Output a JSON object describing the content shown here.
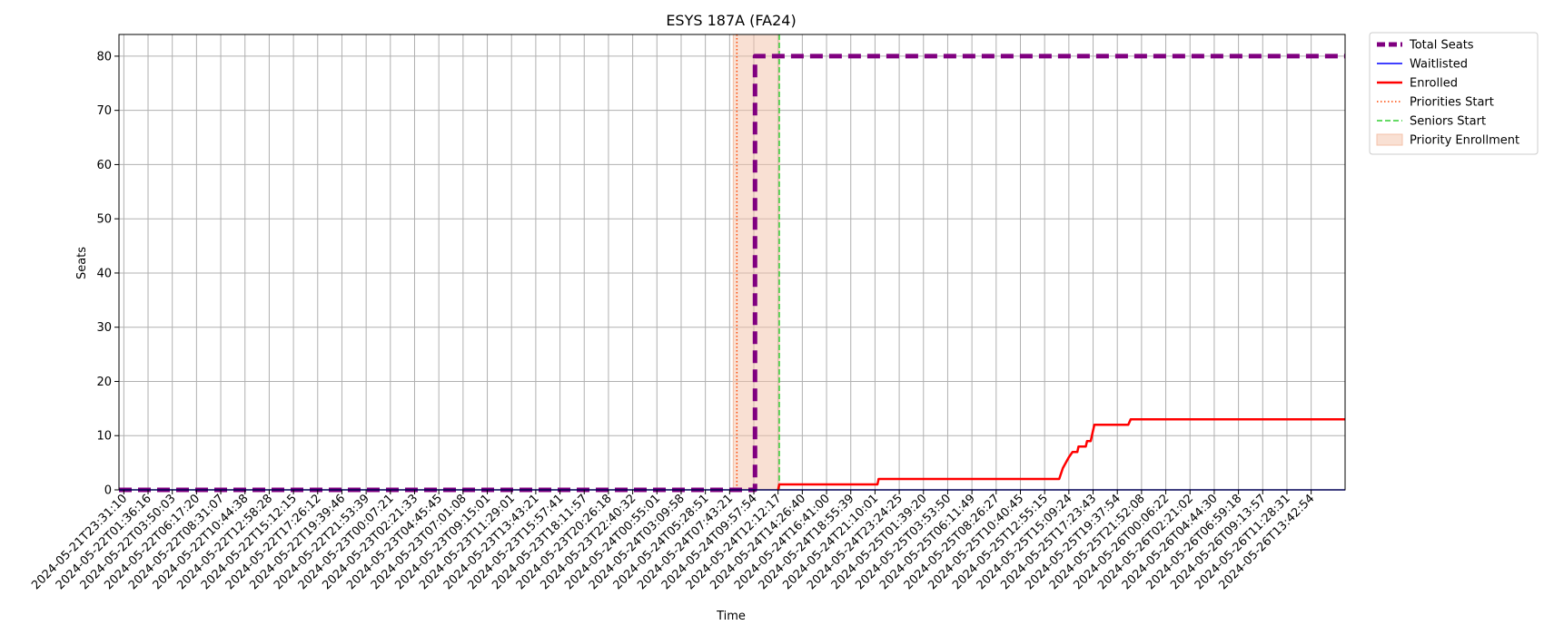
{
  "chart_data": {
    "type": "line",
    "title": "ESYS 187A (FA24)",
    "xlabel": "Time",
    "ylabel": "Seats",
    "ylim": [
      0,
      84
    ],
    "y_ticks": [
      0,
      10,
      20,
      30,
      40,
      50,
      60,
      70,
      80
    ],
    "grid": true,
    "legend_position": "outside-top-right",
    "x_ticks": [
      "2024-05-21T23:31:10",
      "2024-05-22T01:36:16",
      "2024-05-22T03:50:03",
      "2024-05-22T06:17:20",
      "2024-05-22T08:31:07",
      "2024-05-22T10:44:38",
      "2024-05-22T12:58:28",
      "2024-05-22T15:12:15",
      "2024-05-22T17:26:12",
      "2024-05-22T19:39:46",
      "2024-05-22T21:53:39",
      "2024-05-23T00:07:21",
      "2024-05-23T02:21:33",
      "2024-05-23T04:45:45",
      "2024-05-23T07:01:08",
      "2024-05-23T09:15:01",
      "2024-05-23T11:29:01",
      "2024-05-23T13:43:21",
      "2024-05-23T15:57:41",
      "2024-05-23T18:11:57",
      "2024-05-23T20:26:18",
      "2024-05-23T22:40:32",
      "2024-05-24T00:55:01",
      "2024-05-24T03:09:58",
      "2024-05-24T05:28:51",
      "2024-05-24T07:43:21",
      "2024-05-24T09:57:54",
      "2024-05-24T12:12:17",
      "2024-05-24T14:26:40",
      "2024-05-24T16:41:00",
      "2024-05-24T18:55:39",
      "2024-05-24T21:10:01",
      "2024-05-24T23:24:25",
      "2024-05-25T01:39:20",
      "2024-05-25T03:53:50",
      "2024-05-25T06:11:49",
      "2024-05-25T08:26:27",
      "2024-05-25T10:40:45",
      "2024-05-25T12:55:15",
      "2024-05-25T15:09:24",
      "2024-05-25T17:23:43",
      "2024-05-25T19:37:54",
      "2024-05-25T21:52:08",
      "2024-05-26T00:06:22",
      "2024-05-26T02:21:02",
      "2024-05-26T04:44:30",
      "2024-05-26T06:59:18",
      "2024-05-26T09:13:57",
      "2024-05-26T11:28:31",
      "2024-05-26T13:42:54"
    ],
    "series": [
      {
        "name": "Total Seats",
        "color": "#800080",
        "style": "dashed-thick",
        "points": [
          [
            -0.2,
            0
          ],
          [
            26.05,
            0
          ],
          [
            26.05,
            80
          ],
          [
            50.4,
            80
          ]
        ]
      },
      {
        "name": "Waitlisted",
        "color": "#0000ff",
        "style": "solid-thin",
        "points": [
          [
            -0.2,
            0
          ],
          [
            50.4,
            0
          ]
        ]
      },
      {
        "name": "Enrolled",
        "color": "#ff0000",
        "style": "solid",
        "points": [
          [
            27.0,
            0
          ],
          [
            27.05,
            1
          ],
          [
            31.1,
            1
          ],
          [
            31.15,
            2
          ],
          [
            38.6,
            2
          ],
          [
            38.75,
            4
          ],
          [
            39.0,
            6
          ],
          [
            39.15,
            7
          ],
          [
            39.35,
            7
          ],
          [
            39.4,
            8
          ],
          [
            39.7,
            8
          ],
          [
            39.75,
            9
          ],
          [
            39.9,
            9
          ],
          [
            40.05,
            12
          ],
          [
            41.45,
            12
          ],
          [
            41.55,
            13
          ],
          [
            50.4,
            13
          ]
        ]
      }
    ],
    "markers": [
      {
        "name": "Priorities Start",
        "x": 25.3,
        "color": "#ff4500",
        "style": "dotted"
      },
      {
        "name": "Seniors Start",
        "x": 27.05,
        "color": "#32cd32",
        "style": "dashed"
      }
    ],
    "shaded_regions": [
      {
        "name": "Priority Enrollment",
        "x_start": 25.15,
        "x_end": 27.05,
        "color": "#f4c2a8"
      }
    ],
    "legend": [
      "Total Seats",
      "Waitlisted",
      "Enrolled",
      "Priorities Start",
      "Seniors Start",
      "Priority Enrollment"
    ]
  }
}
